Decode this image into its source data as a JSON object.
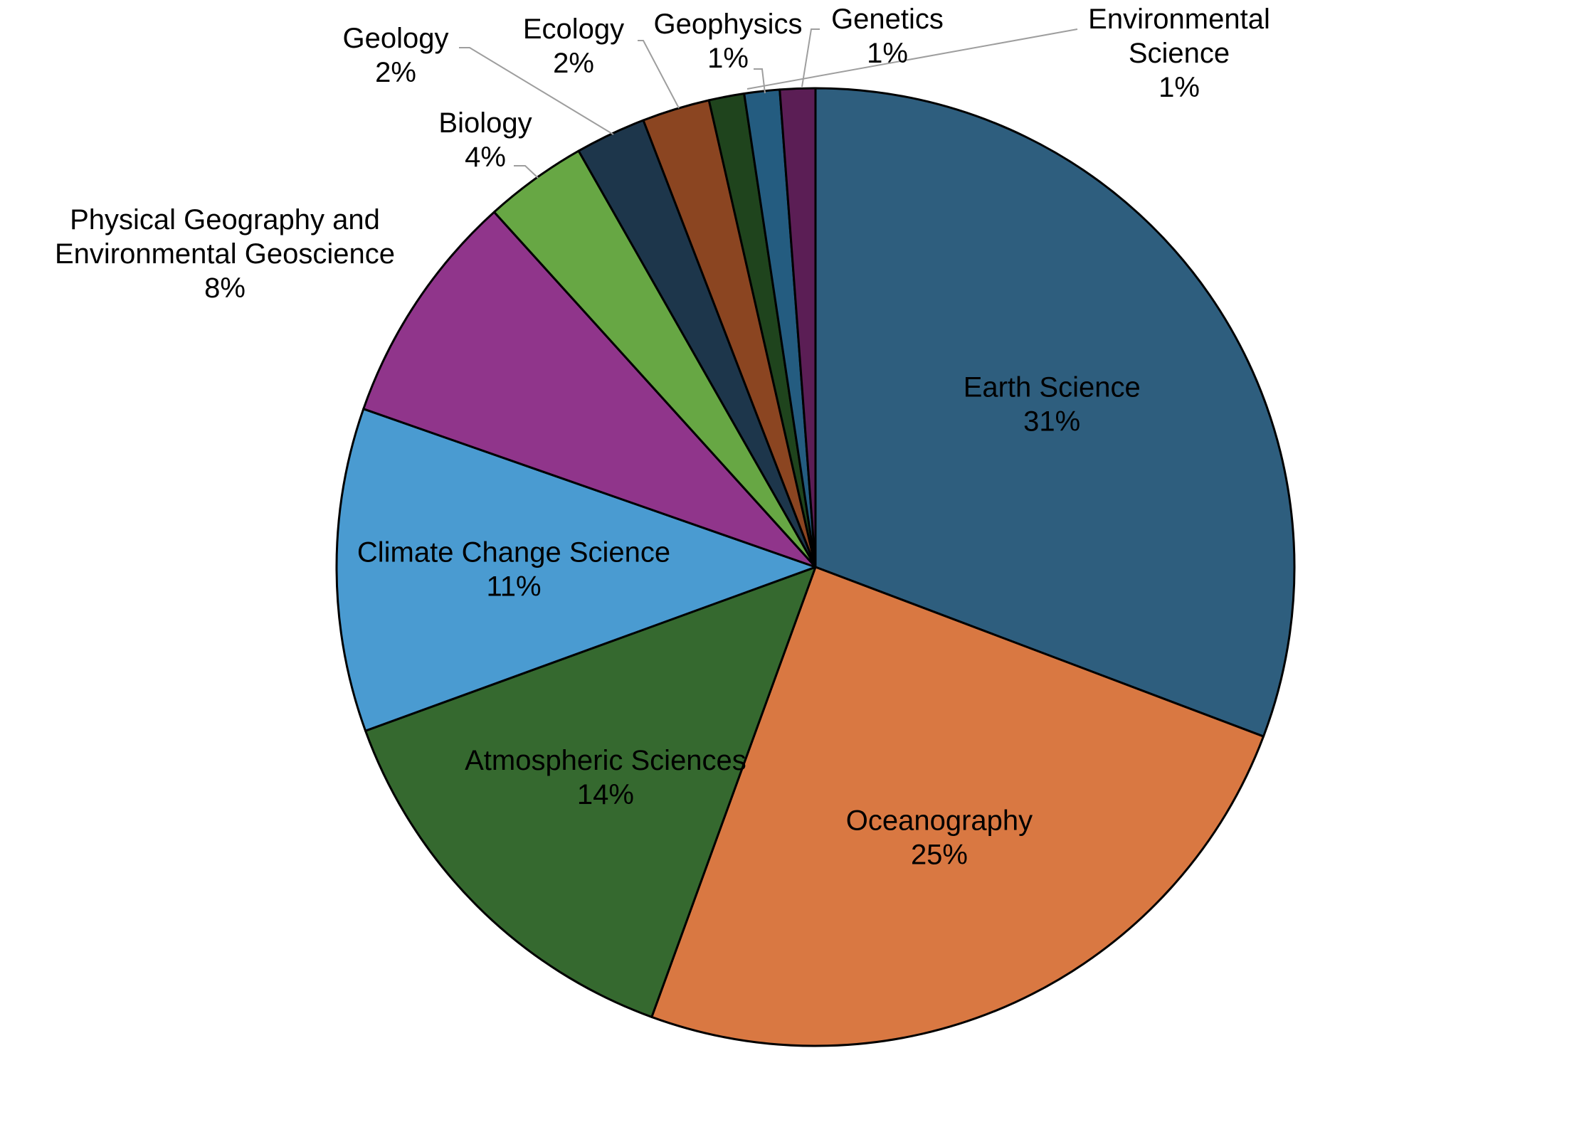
{
  "chart_data": {
    "type": "pie",
    "title": "",
    "start_angle_deg": 0,
    "direction": "clockwise",
    "slices": [
      {
        "label": "Earth Science",
        "pct_label": "31%",
        "value": 31,
        "color": "#2e5e7e"
      },
      {
        "label": "Oceanography",
        "pct_label": "25%",
        "value": 25,
        "color": "#d97842"
      },
      {
        "label": "Atmospheric Sciences",
        "pct_label": "14%",
        "value": 14,
        "color": "#35692f"
      },
      {
        "label": "Climate Change Science",
        "pct_label": "11%",
        "value": 11,
        "color": "#4a9bd1"
      },
      {
        "label": "Physical Geography and Environmental Geoscience",
        "label_lines": [
          "Physical Geography and",
          "Environmental Geoscience"
        ],
        "pct_label": "8%",
        "value": 8,
        "color": "#90358b"
      },
      {
        "label": "Biology",
        "pct_label": "4%",
        "value": 3.5,
        "color": "#67a744"
      },
      {
        "label": "Geology",
        "pct_label": "2%",
        "value": 2.4,
        "color": "#1d364b"
      },
      {
        "label": "Ecology",
        "pct_label": "2%",
        "value": 2.3,
        "color": "#8b4521"
      },
      {
        "label": "Geophysics",
        "pct_label": "1%",
        "value": 1.2,
        "color": "#1f441d"
      },
      {
        "label": "Genetics",
        "pct_label": "1%",
        "value": 1.2,
        "color": "#245c80"
      },
      {
        "label": "Environmental Science",
        "label_lines": [
          "Environmental",
          "Science"
        ],
        "pct_label": "1%",
        "value": 1.2,
        "color": "#5b1e55"
      }
    ],
    "legend": "none",
    "stroke_color": "#000000"
  }
}
